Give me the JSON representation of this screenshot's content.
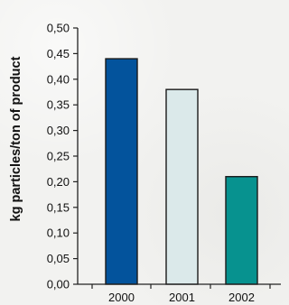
{
  "chart_data": {
    "type": "bar",
    "title": "",
    "xlabel": "",
    "ylabel": "kg particles/ton of product",
    "categories": [
      "2000",
      "2001",
      "2002"
    ],
    "values": [
      0.44,
      0.38,
      0.21
    ],
    "ylim": [
      0,
      0.5
    ],
    "yticks": [
      "0,00",
      "0,05",
      "0,10",
      "0,15",
      "0,20",
      "0,25",
      "0,30",
      "0,35",
      "0,40",
      "0,45",
      "0,50"
    ],
    "grid": false,
    "legend": "none",
    "bar_colors": [
      "#03539c",
      "#dbe9ea",
      "#07928f"
    ],
    "bar_stroke": "#1a1a1a",
    "axis_color": "#222222"
  }
}
